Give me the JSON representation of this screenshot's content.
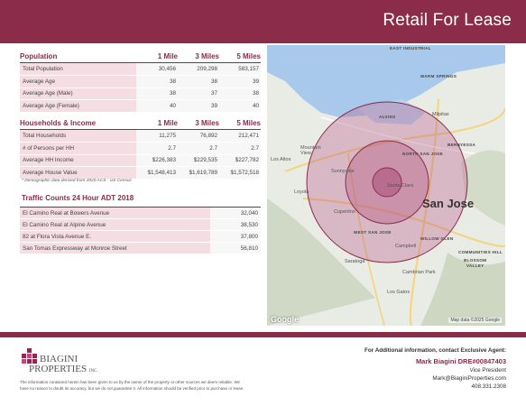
{
  "banner": {
    "title": "Retail For Lease"
  },
  "population": {
    "headers": [
      "Population",
      "1 Mile",
      "3 Miles",
      "5 Miles"
    ],
    "rows": [
      {
        "label": "Total Population",
        "v1": "30,456",
        "v3": "209,298",
        "v5": "583,157"
      },
      {
        "label": "Average Age",
        "v1": "38",
        "v3": "38",
        "v5": "39"
      },
      {
        "label": "Average Age (Male)",
        "v1": "38",
        "v3": "37",
        "v5": "38"
      },
      {
        "label": "Average Age (Female)",
        "v1": "40",
        "v3": "39",
        "v5": "40"
      }
    ]
  },
  "households": {
    "headers": [
      "Households & Income",
      "1 Mile",
      "3 Miles",
      "5 Miles"
    ],
    "rows": [
      {
        "label": "Total Households",
        "v1": "11,275",
        "v3": "76,892",
        "v5": "212,471"
      },
      {
        "label": "# of Persons per HH",
        "v1": "2.7",
        "v3": "2.7",
        "v5": "2.7"
      },
      {
        "label": "Average HH Income",
        "v1": "$226,383",
        "v3": "$229,535",
        "v5": "$227,782"
      },
      {
        "label": "Average House Value",
        "v1": "$1,548,413",
        "v3": "$1,619,789",
        "v5": "$1,572,518"
      }
    ],
    "note": "* Demographic data derived from 2020 ACS - US Census"
  },
  "traffic": {
    "title": "Traffic Counts 24 Hour ADT 2018",
    "rows": [
      {
        "label": "El Camino Real at Bowers Avenue",
        "value": "32,040"
      },
      {
        "label": "El Camino Real at Alpine Avenue",
        "value": "38,530"
      },
      {
        "label": "82 at Flora Vista Avenue E.",
        "value": "37,800"
      },
      {
        "label": "San Tomas Expressway at Monroe Street",
        "value": "56,810"
      }
    ]
  },
  "map": {
    "labels": {
      "east_industrial": "EAST INDUSTRIAL",
      "warm_springs": "WARM SPRINGS",
      "alviso": "ALVISO",
      "milpitas": "Milpitas",
      "mountain_view": "Mountain\nView",
      "berryessa": "BERRYESSA",
      "north_san_jose": "NORTH SAN JOSE",
      "los_altos": "Los Altos",
      "sunnyvale": "Sunnyvale",
      "santa_clara": "Santa Clara",
      "san_jose": "San Jose",
      "loyola": "Loyola",
      "cupertino": "Cupertino",
      "west_san_jose": "WEST SAN JOSE",
      "willow_glen": "WILLOW GLEN",
      "communities_hill": "COMMUNITIES HILL",
      "blossom_valley": "BLOSSOM\nVALLEY",
      "campbell": "Campbell",
      "saratoga": "Saratoga",
      "cambrian_park": "Cambrian Park",
      "los_gatos": "Los Gatos"
    },
    "route_shields": [
      "880",
      "101",
      "237",
      "101",
      "85",
      "280",
      "880",
      "85",
      "17",
      "85",
      "101",
      "17"
    ],
    "google": "Google",
    "credit": "Map data ©2025 Google"
  },
  "footer": {
    "logo_line1": "BIAGINI",
    "logo_line2": "PROPERTIES",
    "logo_inc": "INC.",
    "disclaimer": "The information contained herein has been given to us by the owner of the property or other sources we deem reliable. We have no reason to doubt its accuracy, but we do not guarantee it. All information should be verified prior to purchase or lease.",
    "contact_intro": "For Additional information, contact Exclusive Agent:",
    "agent": "Mark Biagini DRE#00847403",
    "title": "Vice President",
    "email": "Mark@BiaginiProperties.com",
    "phone": "408.331.2308"
  },
  "colors": {
    "brand": "#8a2c4a",
    "label_bg": "#f4dde3"
  }
}
